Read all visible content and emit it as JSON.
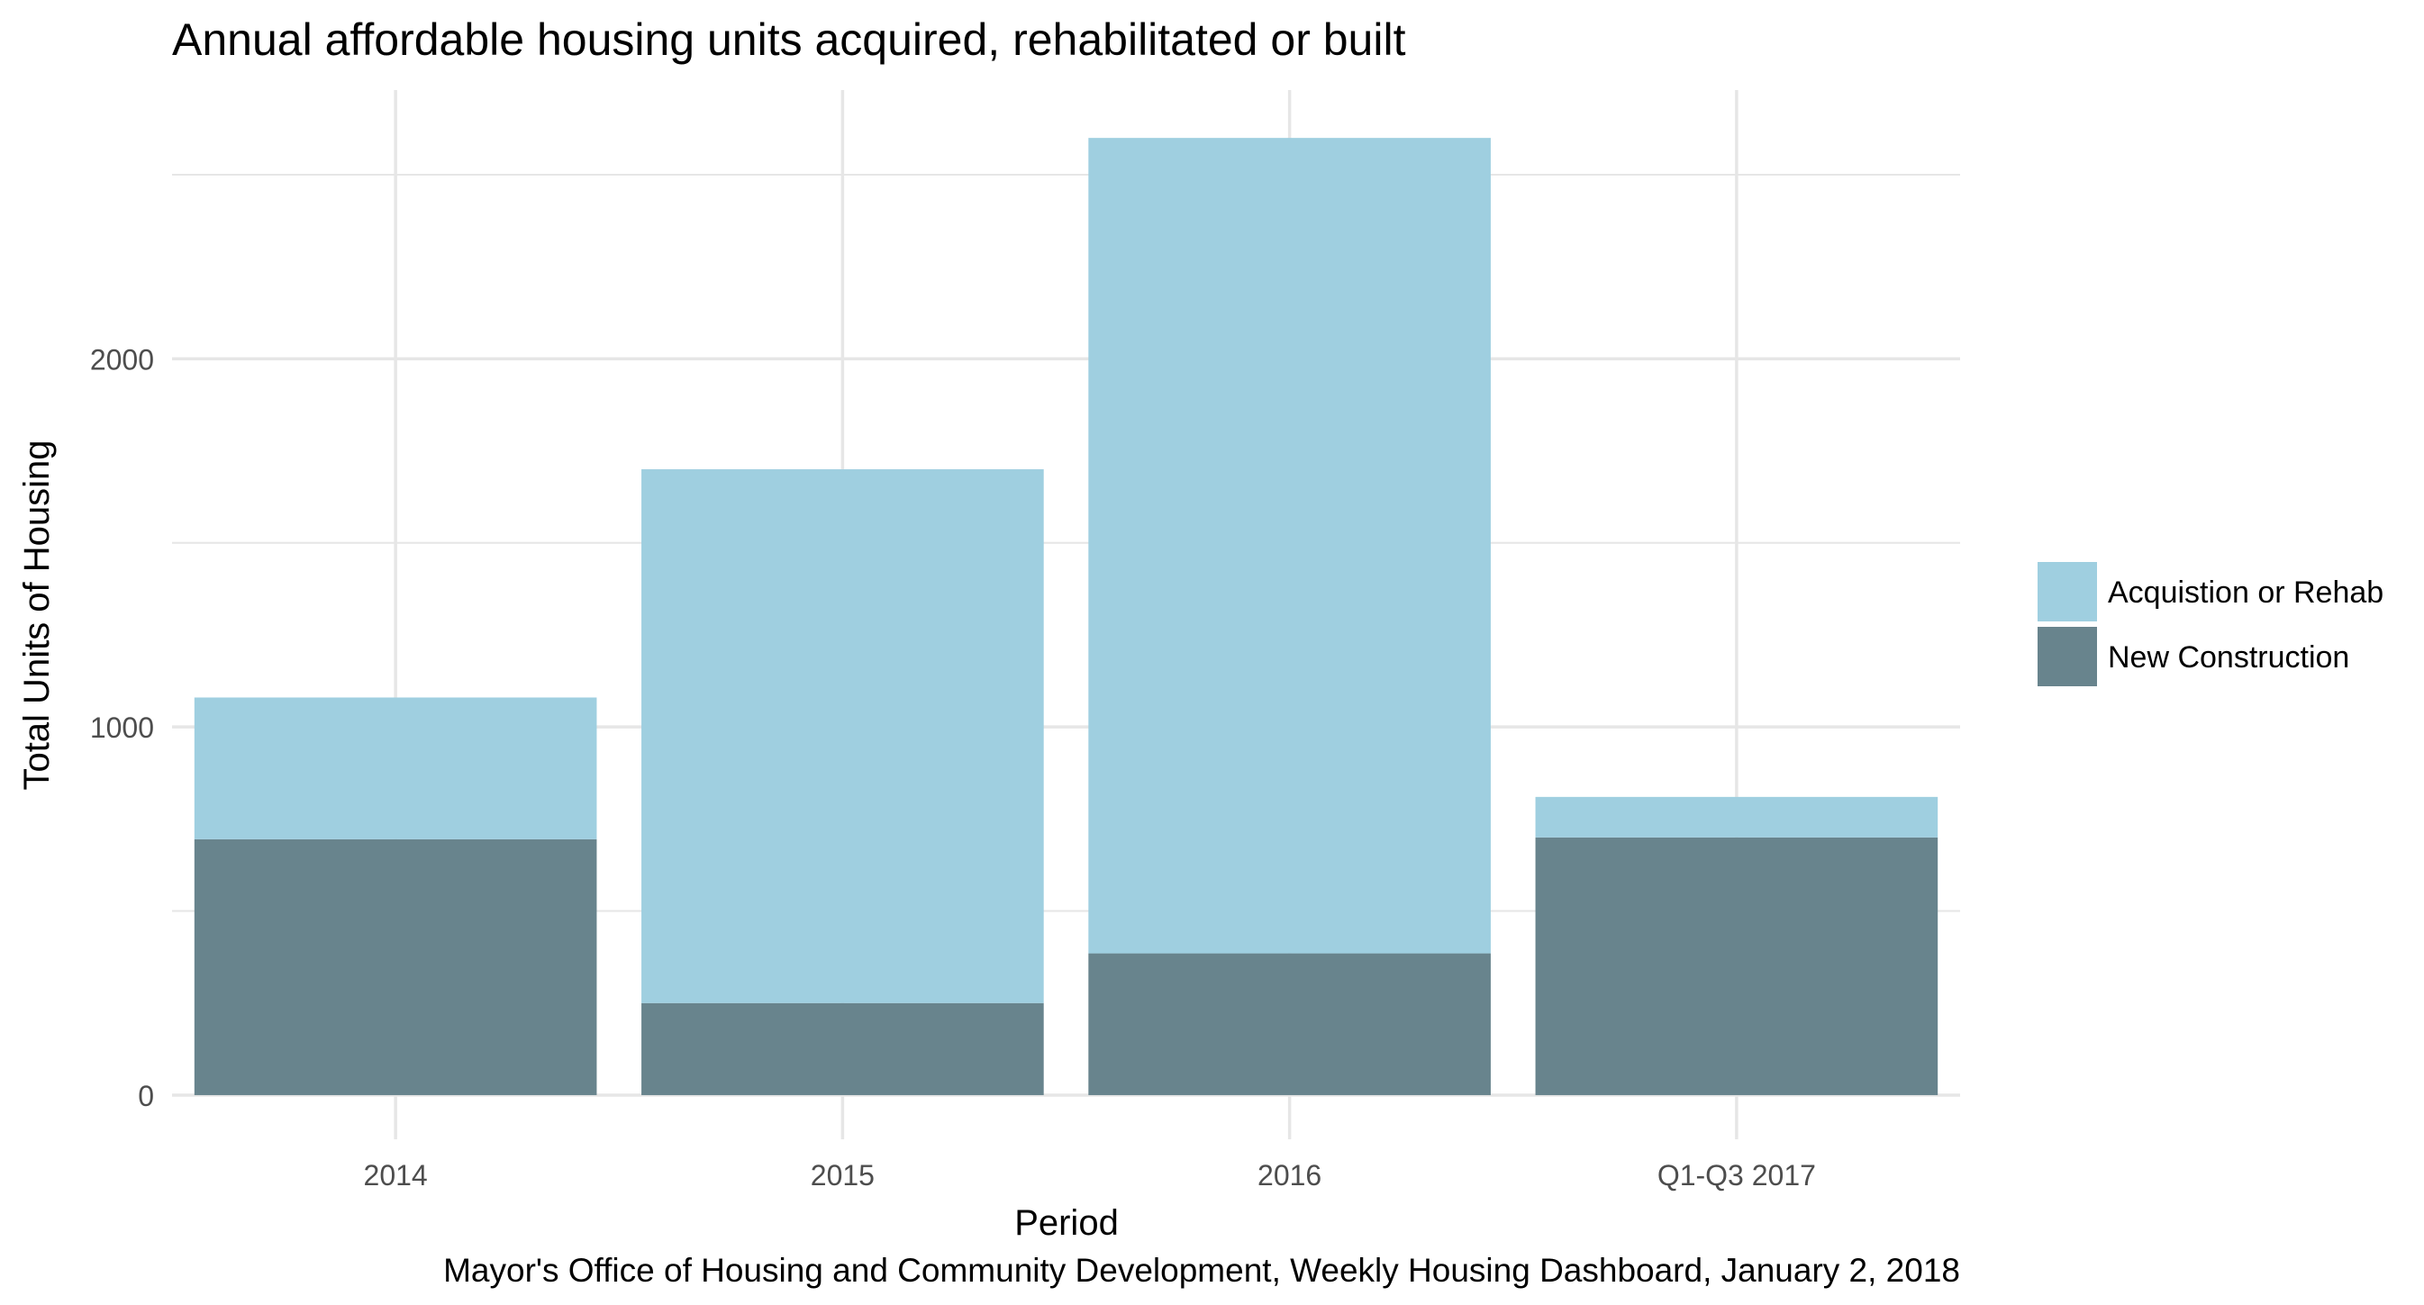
{
  "chart_data": {
    "type": "bar",
    "stacked": true,
    "title": "Annual affordable housing units acquired, rehabilitated or built",
    "xlabel": "Period",
    "ylabel": "Total Units of Housing",
    "caption": "Mayor's Office of Housing and Community Development, Weekly Housing Dashboard, January 2, 2018",
    "categories": [
      "2014",
      "2015",
      "2016",
      "Q1-Q3 2017"
    ],
    "series": [
      {
        "name": "New Construction",
        "values": [
          695,
          250,
          385,
          700
        ],
        "color": "#68848d"
      },
      {
        "name": "Acquistion or Rehab",
        "values": [
          385,
          1450,
          2215,
          110
        ],
        "color": "#9fcfe0"
      }
    ],
    "legend_order": [
      "Acquistion or Rehab",
      "New Construction"
    ],
    "yticks": [
      0,
      1000,
      2000
    ],
    "ylim": [
      -120,
      2730
    ],
    "grid": true,
    "legend_position": "right",
    "colors": {
      "grid": "#e6e6e6",
      "tick_text": "#4d4d4d",
      "text": "#000000"
    }
  }
}
